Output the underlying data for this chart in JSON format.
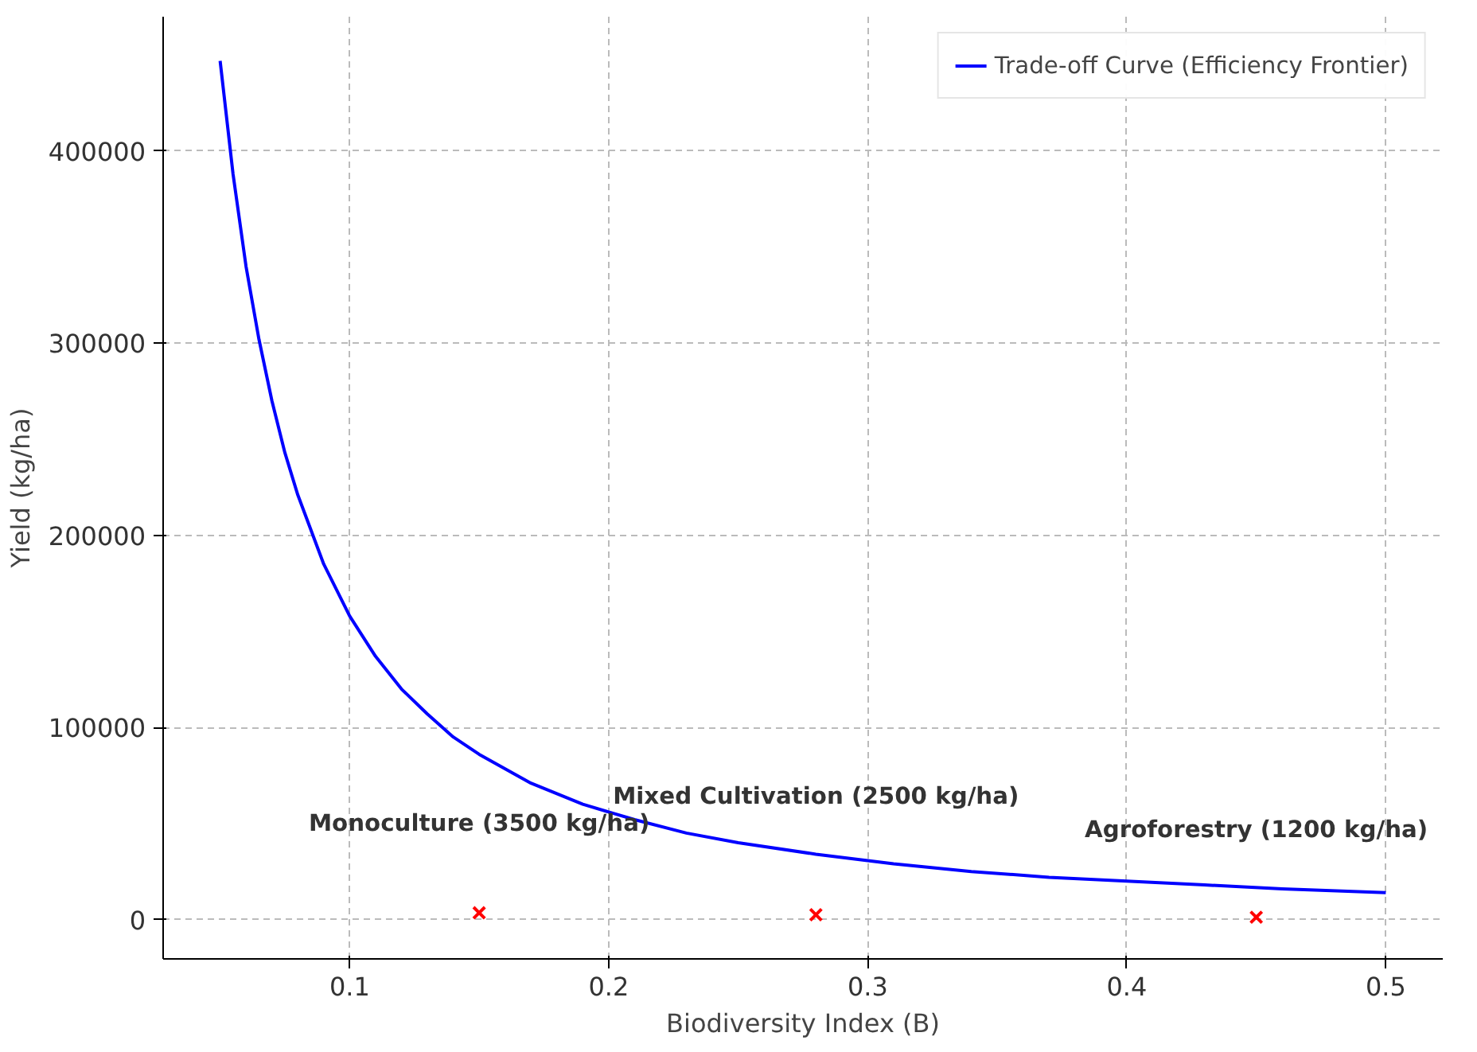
{
  "chart_data": {
    "type": "line",
    "xlabel": "Biodiversity Index (B)",
    "ylabel": "Yield (kg/ha)",
    "xlim": [
      0.028,
      0.522
    ],
    "ylim": [
      -20500,
      470000
    ],
    "xticks": [
      0.1,
      0.2,
      0.3,
      0.4,
      0.5
    ],
    "yticks": [
      0,
      100000,
      200000,
      300000,
      400000
    ],
    "grid": true,
    "legend": "top right",
    "series": [
      {
        "name": "Trade-off Curve (Efficiency Frontier)",
        "color": "#0000ff",
        "line_style": "solid",
        "marker": "none",
        "x": [
          0.05,
          0.055,
          0.06,
          0.065,
          0.07,
          0.075,
          0.08,
          0.09,
          0.1,
          0.11,
          0.12,
          0.13,
          0.14,
          0.15,
          0.17,
          0.19,
          0.21,
          0.23,
          0.25,
          0.28,
          0.31,
          0.34,
          0.37,
          0.4,
          0.43,
          0.46,
          0.5
        ],
        "values": [
          447000,
          388000,
          340000,
          302000,
          270000,
          243000,
          221000,
          185000,
          158000,
          137000,
          120000,
          107000,
          95000,
          86000,
          71000,
          60000,
          52000,
          45000,
          40000,
          34000,
          29000,
          25000,
          22000,
          20000,
          18000,
          16000,
          14000
        ]
      },
      {
        "type": "scatter",
        "color": "#ff0000",
        "marker": "cross",
        "x": [
          0.15,
          0.28,
          0.45
        ],
        "values": [
          3500,
          2500,
          1200
        ]
      }
    ],
    "annotations": [
      "Monoculture (3500 kg/ha)",
      "Mixed Cultivation (2500 kg/ha)",
      "Agroforestry (1200 kg/ha)"
    ]
  }
}
